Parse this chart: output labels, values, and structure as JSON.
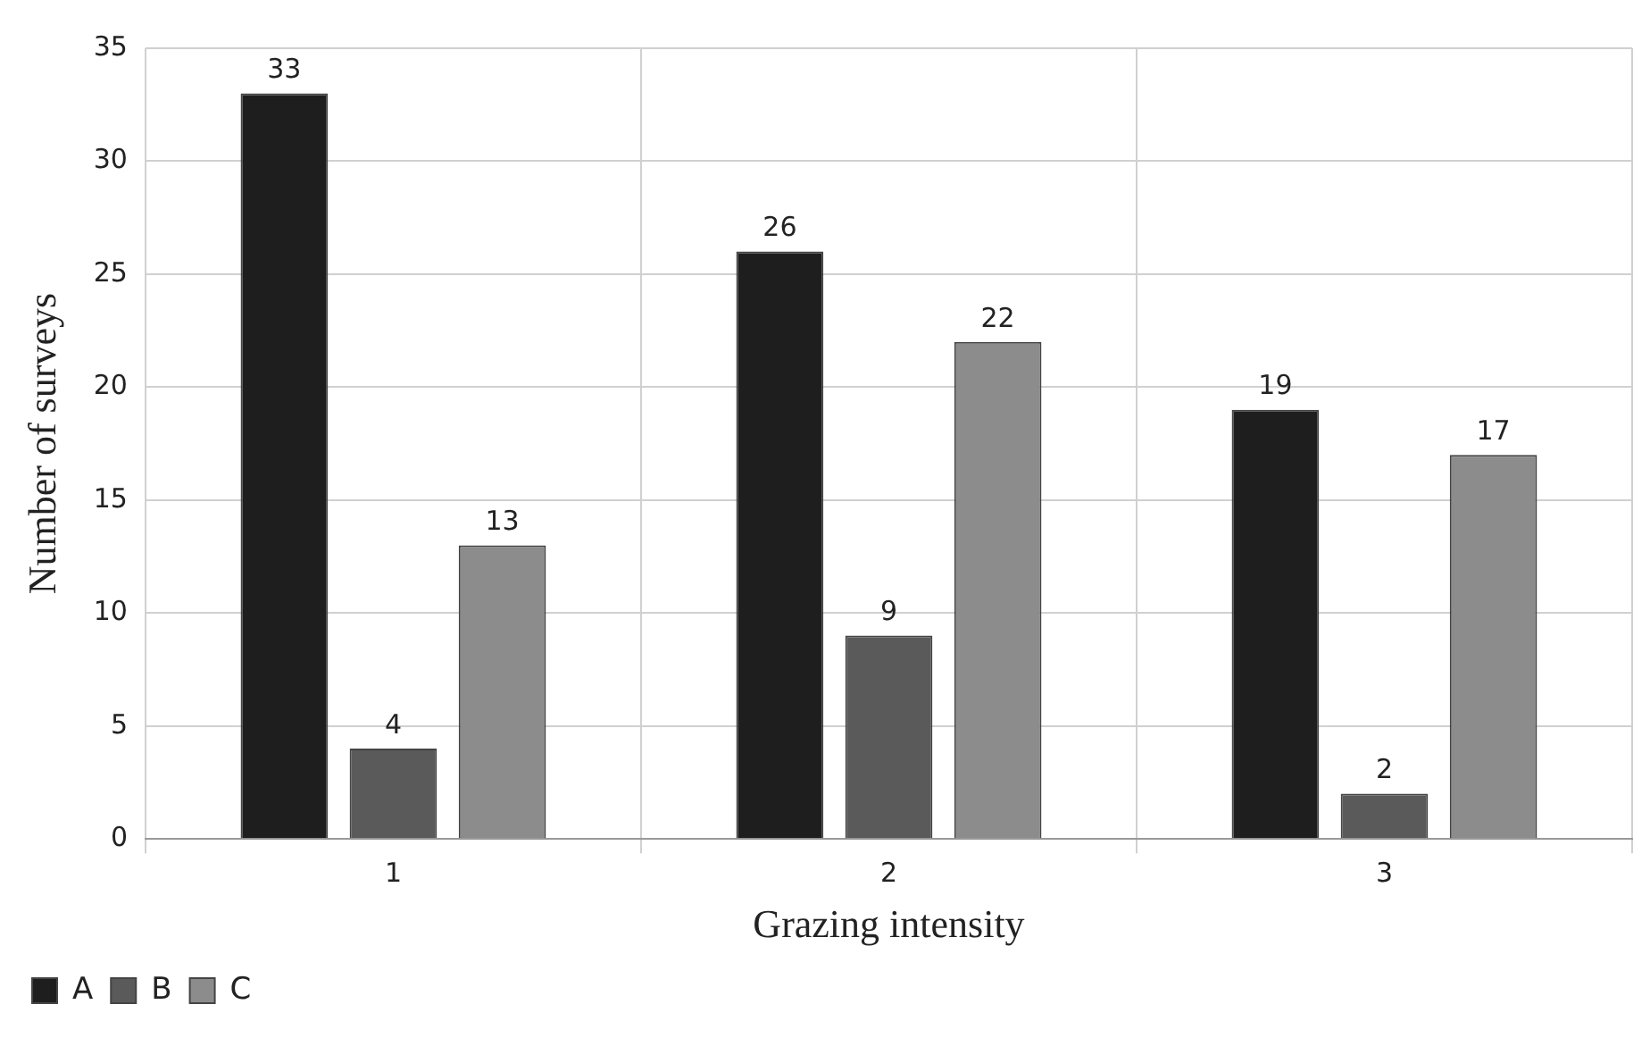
{
  "chart_data": {
    "type": "bar",
    "xlabel": "Grazing intensity",
    "ylabel": "Number of surveys",
    "categories": [
      "1",
      "2",
      "3"
    ],
    "series": [
      {
        "name": "A",
        "color": "#1e1e1e",
        "values": [
          33,
          26,
          19
        ]
      },
      {
        "name": "B",
        "color": "#5a5a5a",
        "values": [
          4,
          9,
          2
        ]
      },
      {
        "name": "C",
        "color": "#8c8c8c",
        "values": [
          13,
          22,
          17
        ]
      }
    ],
    "ylim": [
      0,
      35
    ],
    "yticks": [
      0,
      5,
      10,
      15,
      20,
      25,
      30,
      35
    ],
    "grid": true,
    "legend": "bottom left",
    "data_labels": true
  }
}
